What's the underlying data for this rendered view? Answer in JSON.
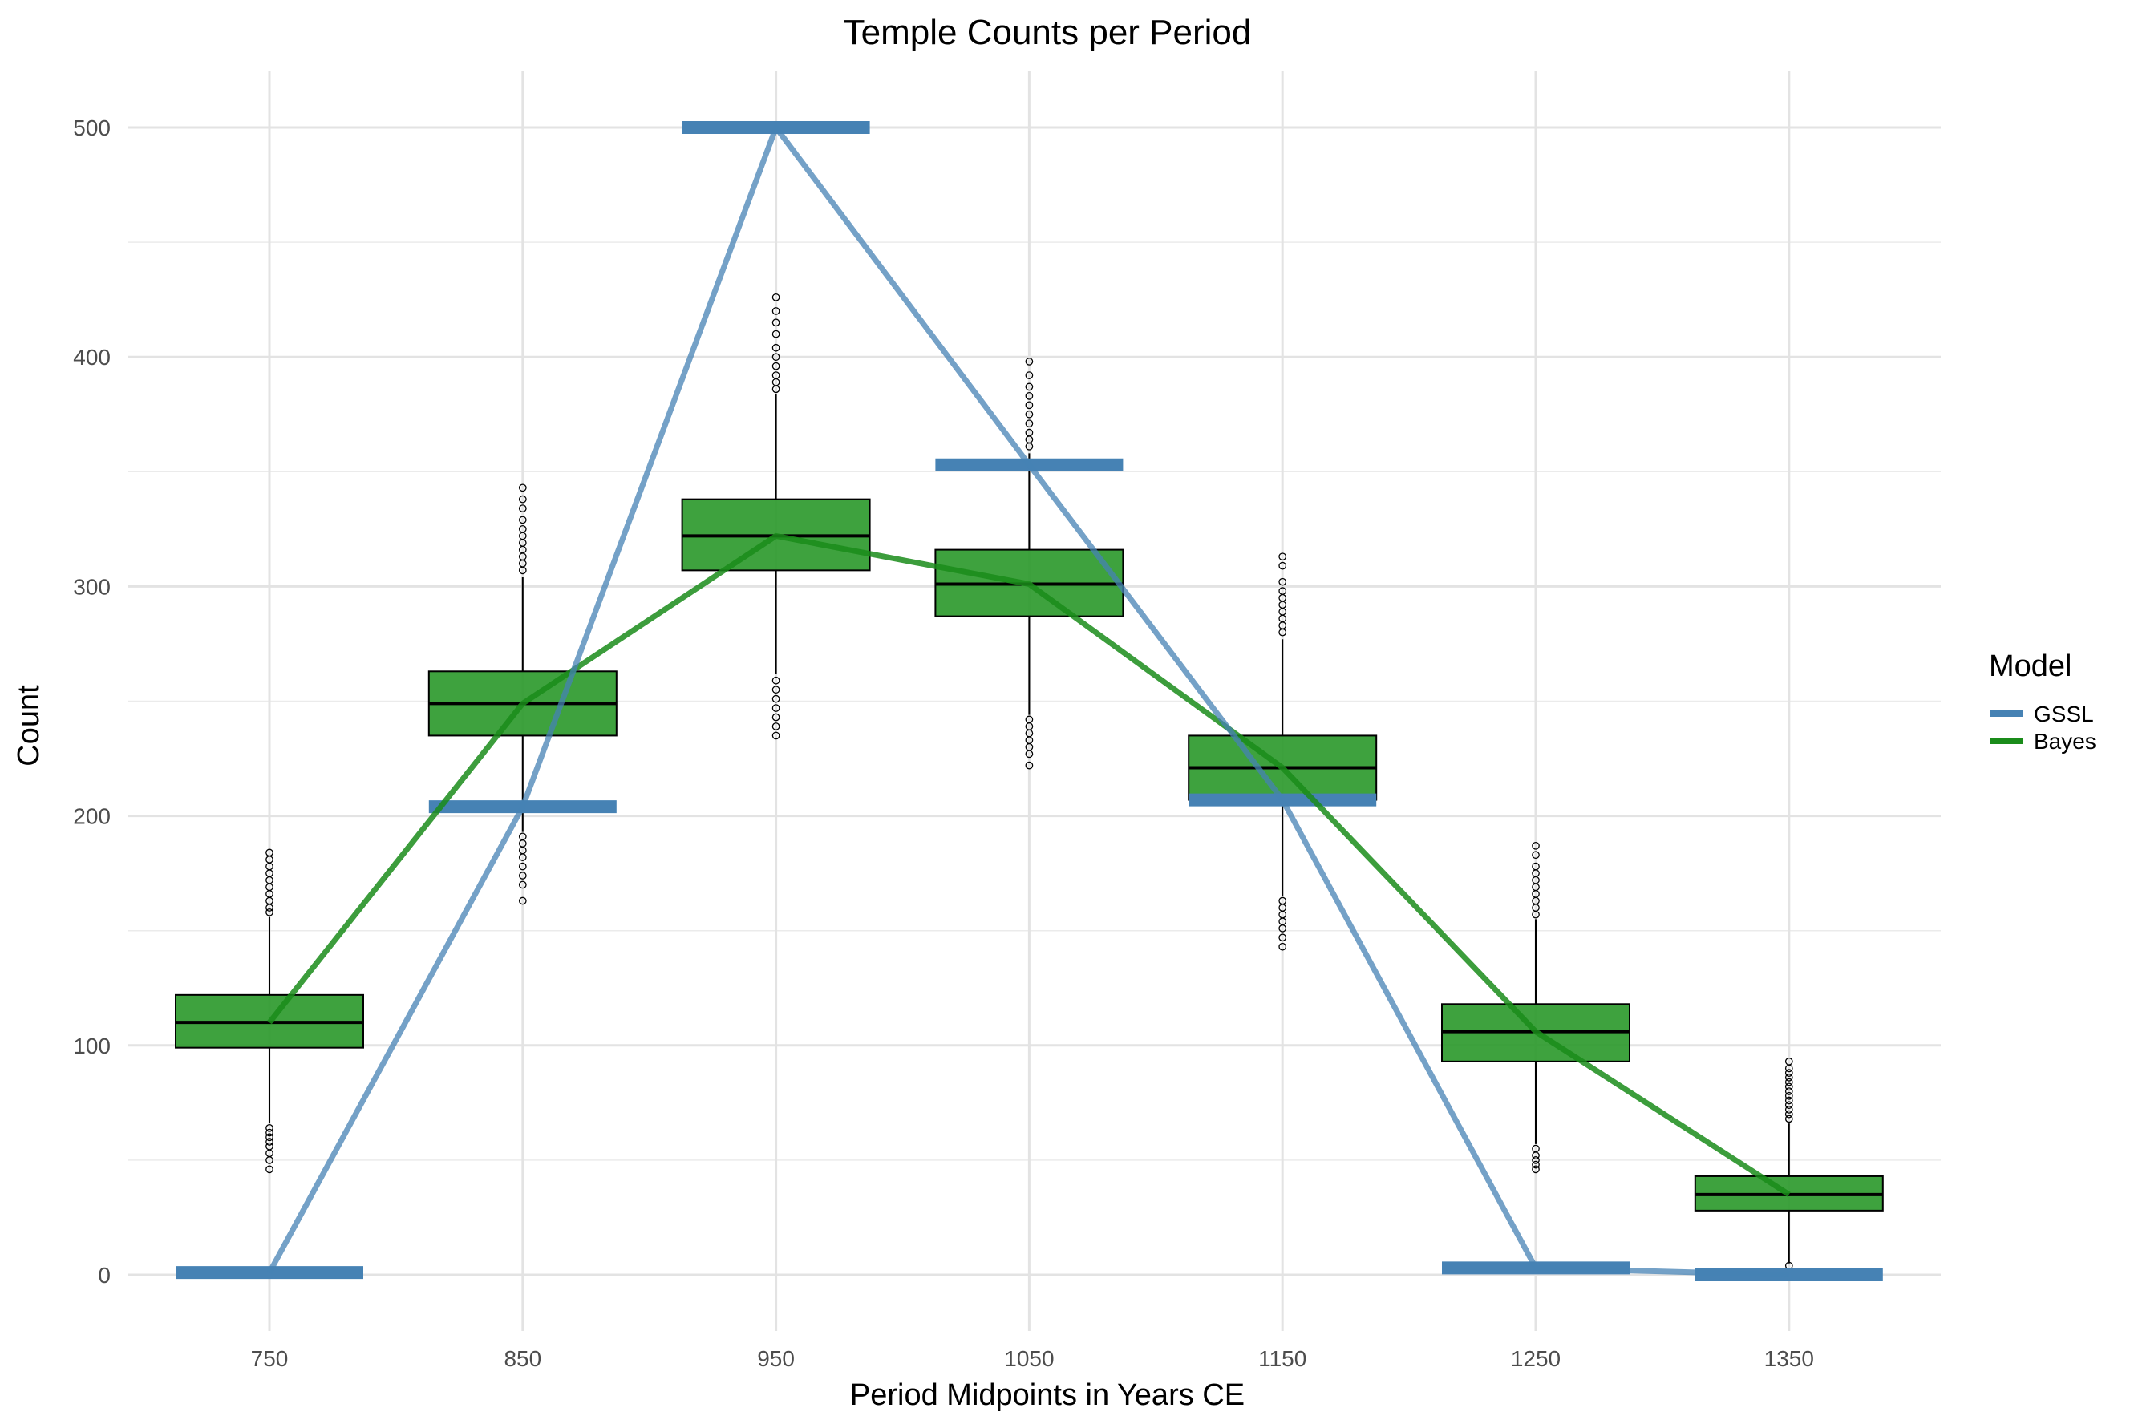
{
  "chart_data": {
    "type": "box",
    "title": "Temple Counts per Period",
    "xlabel": "Period Midpoints in Years CE",
    "ylabel": "Count",
    "categories": [
      "750",
      "850",
      "950",
      "1050",
      "1150",
      "1250",
      "1350"
    ],
    "x": [
      750,
      850,
      950,
      1050,
      1150,
      1250,
      1350
    ],
    "ylim": [
      -15,
      515
    ],
    "yticks": [
      0,
      100,
      200,
      300,
      400,
      500
    ],
    "grid": true,
    "legend": {
      "title": "Model",
      "position": "right",
      "entries": [
        {
          "name": "GSSL",
          "color": "#4682b4"
        },
        {
          "name": "Bayes",
          "color": "#1a8c1a"
        }
      ]
    },
    "series": [
      {
        "name": "GSSL",
        "type": "line",
        "color": "#4682b4",
        "values": [
          1,
          204,
          500,
          353,
          207,
          3,
          0
        ]
      },
      {
        "name": "Bayes",
        "type": "box",
        "color": "#1a8c1a",
        "median_line": [
          110,
          249,
          322,
          301,
          221,
          106,
          35
        ],
        "boxes": [
          {
            "x": 750,
            "whisker_low": 66,
            "q1": 99,
            "median": 110,
            "q3": 122,
            "whisker_high": 156,
            "outliers_low": [
              64,
              62,
              60,
              58,
              56,
              53,
              50,
              46
            ],
            "outliers_high": [
              158,
              160,
              163,
              166,
              169,
              172,
              175,
              178,
              181,
              184
            ]
          },
          {
            "x": 850,
            "whisker_low": 193,
            "q1": 235,
            "median": 249,
            "q3": 263,
            "whisker_high": 304,
            "outliers_low": [
              191,
              188,
              185,
              182,
              178,
              174,
              170,
              163
            ],
            "outliers_high": [
              307,
              310,
              313,
              316,
              319,
              322,
              325,
              329,
              334,
              338,
              343
            ]
          },
          {
            "x": 950,
            "whisker_low": 262,
            "q1": 307,
            "median": 322,
            "q3": 338,
            "whisker_high": 384,
            "outliers_low": [
              259,
              255,
              251,
              247,
              243,
              239,
              235
            ],
            "outliers_high": [
              386,
              389,
              392,
              396,
              400,
              404,
              410,
              415,
              420,
              426
            ]
          },
          {
            "x": 1050,
            "whisker_low": 244,
            "q1": 287,
            "median": 301,
            "q3": 316,
            "whisker_high": 358,
            "outliers_low": [
              242,
              239,
              236,
              233,
              230,
              227,
              222
            ],
            "outliers_high": [
              361,
              364,
              367,
              371,
              375,
              379,
              383,
              387,
              392,
              398
            ]
          },
          {
            "x": 1150,
            "whisker_low": 165,
            "q1": 207,
            "median": 221,
            "q3": 235,
            "whisker_high": 277,
            "outliers_low": [
              163,
              160,
              157,
              154,
              151,
              147,
              143
            ],
            "outliers_high": [
              280,
              283,
              286,
              289,
              292,
              295,
              298,
              302,
              309,
              313
            ]
          },
          {
            "x": 1250,
            "whisker_low": 57,
            "q1": 93,
            "median": 106,
            "q3": 118,
            "whisker_high": 155,
            "outliers_low": [
              55,
              52,
              50,
              48,
              46
            ],
            "outliers_high": [
              157,
              160,
              163,
              166,
              169,
              172,
              175,
              178,
              183,
              187
            ]
          },
          {
            "x": 1350,
            "whisker_low": 5,
            "q1": 28,
            "median": 35,
            "q3": 43,
            "whisker_high": 66,
            "outliers_low": [
              4
            ],
            "outliers_high": [
              68,
              70,
              72,
              74,
              76,
              78,
              80,
              82,
              84,
              86,
              88,
              90,
              93
            ]
          }
        ]
      }
    ]
  }
}
